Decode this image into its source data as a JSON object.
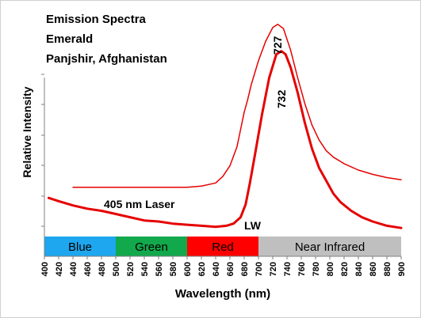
{
  "chart_data": {
    "type": "line",
    "title_lines": [
      "Emission Spectra",
      "Emerald",
      "Panjshir, Afghanistan"
    ],
    "xlabel": "Wavelength (nm)",
    "ylabel": "Relative Intensity",
    "xlim": [
      400,
      900
    ],
    "ylim": [
      0,
      100
    ],
    "x_ticks": [
      400,
      420,
      440,
      460,
      480,
      500,
      520,
      540,
      560,
      580,
      600,
      620,
      640,
      660,
      680,
      700,
      720,
      740,
      760,
      780,
      800,
      820,
      840,
      860,
      880,
      900
    ],
    "y_ticks_labeled": false,
    "grid": false,
    "bands": [
      {
        "label": "Blue",
        "from": 400,
        "to": 500,
        "color": "#1ea7ef"
      },
      {
        "label": "Green",
        "from": 500,
        "to": 600,
        "color": "#12a84c"
      },
      {
        "label": "Red",
        "from": 600,
        "to": 700,
        "color": "#ff0000"
      },
      {
        "label": "Near Infrared",
        "from": 700,
        "to": 900,
        "color": "#bfbfbf"
      }
    ],
    "series": [
      {
        "name": "405 nm Laser",
        "color": "#e60000",
        "width": "thin",
        "peak_label": "727",
        "points": [
          [
            440,
            23
          ],
          [
            480,
            23
          ],
          [
            520,
            23
          ],
          [
            560,
            23
          ],
          [
            600,
            23
          ],
          [
            620,
            23.5
          ],
          [
            640,
            25
          ],
          [
            650,
            28
          ],
          [
            660,
            33
          ],
          [
            670,
            42
          ],
          [
            675,
            50
          ],
          [
            680,
            58
          ],
          [
            685,
            64
          ],
          [
            690,
            71
          ],
          [
            700,
            82
          ],
          [
            710,
            91
          ],
          [
            720,
            97.5
          ],
          [
            727,
            99
          ],
          [
            735,
            97
          ],
          [
            745,
            87
          ],
          [
            755,
            74
          ],
          [
            765,
            62
          ],
          [
            775,
            52
          ],
          [
            785,
            45
          ],
          [
            795,
            40
          ],
          [
            805,
            37
          ],
          [
            820,
            34
          ],
          [
            840,
            31
          ],
          [
            860,
            29
          ],
          [
            880,
            27.5
          ],
          [
            900,
            26.5
          ]
        ]
      },
      {
        "name": "LW",
        "color": "#e60000",
        "width": "thick",
        "peak_label": "732",
        "points": [
          [
            406,
            18
          ],
          [
            420,
            16.5
          ],
          [
            440,
            14.5
          ],
          [
            460,
            13
          ],
          [
            480,
            12
          ],
          [
            500,
            10.5
          ],
          [
            520,
            9
          ],
          [
            540,
            7.5
          ],
          [
            560,
            7
          ],
          [
            580,
            6
          ],
          [
            600,
            5.5
          ],
          [
            620,
            5
          ],
          [
            640,
            4.5
          ],
          [
            655,
            5
          ],
          [
            665,
            6
          ],
          [
            675,
            9
          ],
          [
            682,
            15
          ],
          [
            688,
            25
          ],
          [
            695,
            38
          ],
          [
            705,
            57
          ],
          [
            715,
            74
          ],
          [
            725,
            85
          ],
          [
            732,
            86.5
          ],
          [
            738,
            85
          ],
          [
            745,
            79
          ],
          [
            755,
            67
          ],
          [
            765,
            53
          ],
          [
            775,
            41
          ],
          [
            785,
            32
          ],
          [
            795,
            26
          ],
          [
            805,
            20
          ],
          [
            815,
            16
          ],
          [
            830,
            12
          ],
          [
            845,
            9
          ],
          [
            860,
            7
          ],
          [
            880,
            5
          ],
          [
            900,
            4
          ]
        ]
      }
    ]
  }
}
